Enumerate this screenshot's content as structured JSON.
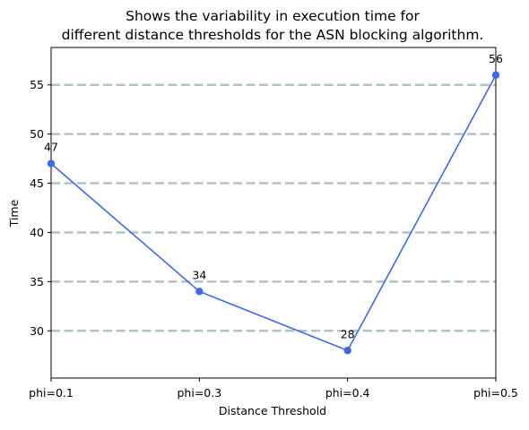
{
  "chart_data": {
    "type": "line",
    "title_line1": "Shows the variability in execution time for",
    "title_line2": "different distance thresholds for the ASN blocking algorithm.",
    "xlabel": "Distance Threshold",
    "ylabel": "Time",
    "categories": [
      "phi=0.1",
      "phi=0.3",
      "phi=0.4",
      "phi=0.5"
    ],
    "series": [
      {
        "values": [
          47,
          34,
          28,
          56
        ]
      }
    ],
    "data_labels": [
      "47",
      "34",
      "28",
      "56"
    ],
    "ylim": [
      25.2,
      58.8
    ],
    "yticks": [
      30,
      35,
      40,
      45,
      50,
      55
    ],
    "ytick_labels": [
      "30",
      "35",
      "40",
      "45",
      "50",
      "55"
    ],
    "grid": "horizontal dashed",
    "colors": {
      "line": "#4169e1",
      "grid": "#b0c4c4",
      "axis": "#000000"
    }
  }
}
